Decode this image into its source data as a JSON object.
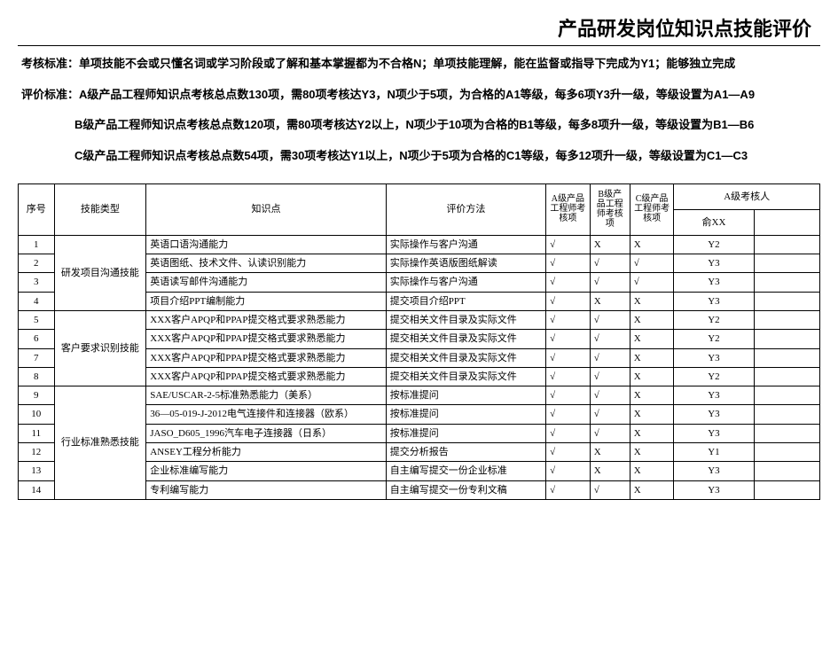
{
  "title": "产品研发岗位知识点技能评价",
  "criteria": {
    "line1": "考核标准：单项技能不会或只懂名词或学习阶段或了解和基本掌握都为不合格N；单项技能理解，能在监督或指导下完成为Y1；能够独立完成",
    "line2": "评价标准：A级产品工程师知识点考核总点数130项，需80项考核达Y3，N项少于5项，为合格的A1等级，每多6项Y3升一级，等级设置为A1—A9",
    "line3": "B级产品工程师知识点考核总点数120项，需80项考核达Y2以上，N项少于10项为合格的B1等级，每多8项升一级，等级设置为B1—B6",
    "line4": "C级产品工程师知识点考核总点数54项，需30项考核达Y1以上，N项少于5项为合格的C1等级，每多12项升一级，等级设置为C1—C3"
  },
  "headers": {
    "seq": "序号",
    "skill_type": "技能类型",
    "knowledge_point": "知识点",
    "eval_method": "评价方法",
    "a_item": "A级产品工程师考核项",
    "b_item": "B级产品工程师考核项",
    "c_item": "C级产品工程师考核项",
    "a_auditor": "A级考核人",
    "auditor_name": "俞XX",
    "auditor_blank": ""
  },
  "skill_groups": [
    {
      "label": "研发项目沟通技能",
      "rowspan": 4
    },
    {
      "label": "客户要求识别技能",
      "rowspan": 4
    },
    {
      "label": "行业标准熟悉技能",
      "rowspan": 6
    }
  ],
  "rows": [
    {
      "seq": "1",
      "kpt": "英语口语沟通能力",
      "eval": "实际操作与客户沟通",
      "a": "√",
      "b": "X",
      "c": "X",
      "aud1": "Y2",
      "aud2": ""
    },
    {
      "seq": "2",
      "kpt": "英语图纸、技术文件、认读识别能力",
      "eval": "实际操作英语版图纸解读",
      "a": "√",
      "b": "√",
      "c": "√",
      "aud1": "Y3",
      "aud2": ""
    },
    {
      "seq": "3",
      "kpt": "英语读写邮件沟通能力",
      "eval": "实际操作与客户沟通",
      "a": "√",
      "b": "√",
      "c": "√",
      "aud1": "Y3",
      "aud2": ""
    },
    {
      "seq": "4",
      "kpt": "项目介绍PPT编制能力",
      "eval": "提交项目介绍PPT",
      "a": "√",
      "b": "X",
      "c": "X",
      "aud1": "Y3",
      "aud2": ""
    },
    {
      "seq": "5",
      "kpt": "XXX客户APQP和PPAP提交格式要求熟悉能力",
      "eval": "提交相关文件目录及实际文件",
      "a": "√",
      "b": "√",
      "c": "X",
      "aud1": "Y2",
      "aud2": ""
    },
    {
      "seq": "6",
      "kpt": "XXX客户APQP和PPAP提交格式要求熟悉能力",
      "eval": "提交相关文件目录及实际文件",
      "a": "√",
      "b": "√",
      "c": "X",
      "aud1": "Y2",
      "aud2": ""
    },
    {
      "seq": "7",
      "kpt": "XXX客户APQP和PPAP提交格式要求熟悉能力",
      "eval": "提交相关文件目录及实际文件",
      "a": "√",
      "b": "√",
      "c": "X",
      "aud1": "Y3",
      "aud2": ""
    },
    {
      "seq": "8",
      "kpt": "XXX客户APQP和PPAP提交格式要求熟悉能力",
      "eval": "提交相关文件目录及实际文件",
      "a": "√",
      "b": "√",
      "c": "X",
      "aud1": "Y2",
      "aud2": ""
    },
    {
      "seq": "9",
      "kpt": "SAE/USCAR-2-5标准熟悉能力（美系）",
      "eval": "按标准提问",
      "a": "√",
      "b": "√",
      "c": "X",
      "aud1": "Y3",
      "aud2": ""
    },
    {
      "seq": "10",
      "kpt": "36—05-019-J-2012电气连接件和连接器（欧系）",
      "eval": "按标准提问",
      "a": "√",
      "b": "√",
      "c": "X",
      "aud1": "Y3",
      "aud2": ""
    },
    {
      "seq": "11",
      "kpt": "JASO_D605_1996汽车电子连接器（日系）",
      "eval": "按标准提问",
      "a": "√",
      "b": "√",
      "c": "X",
      "aud1": "Y3",
      "aud2": ""
    },
    {
      "seq": "12",
      "kpt": "ANSEY工程分析能力",
      "eval": "提交分析报告",
      "a": "√",
      "b": "X",
      "c": "X",
      "aud1": "Y1",
      "aud2": ""
    },
    {
      "seq": "13",
      "kpt": "企业标准编写能力",
      "eval": "自主编写提交一份企业标准",
      "a": "√",
      "b": "X",
      "c": "X",
      "aud1": "Y3",
      "aud2": ""
    },
    {
      "seq": "14",
      "kpt": "专利编写能力",
      "eval": "自主编写提交一份专利文稿",
      "a": "√",
      "b": "√",
      "c": "X",
      "aud1": "Y3",
      "aud2": ""
    }
  ]
}
